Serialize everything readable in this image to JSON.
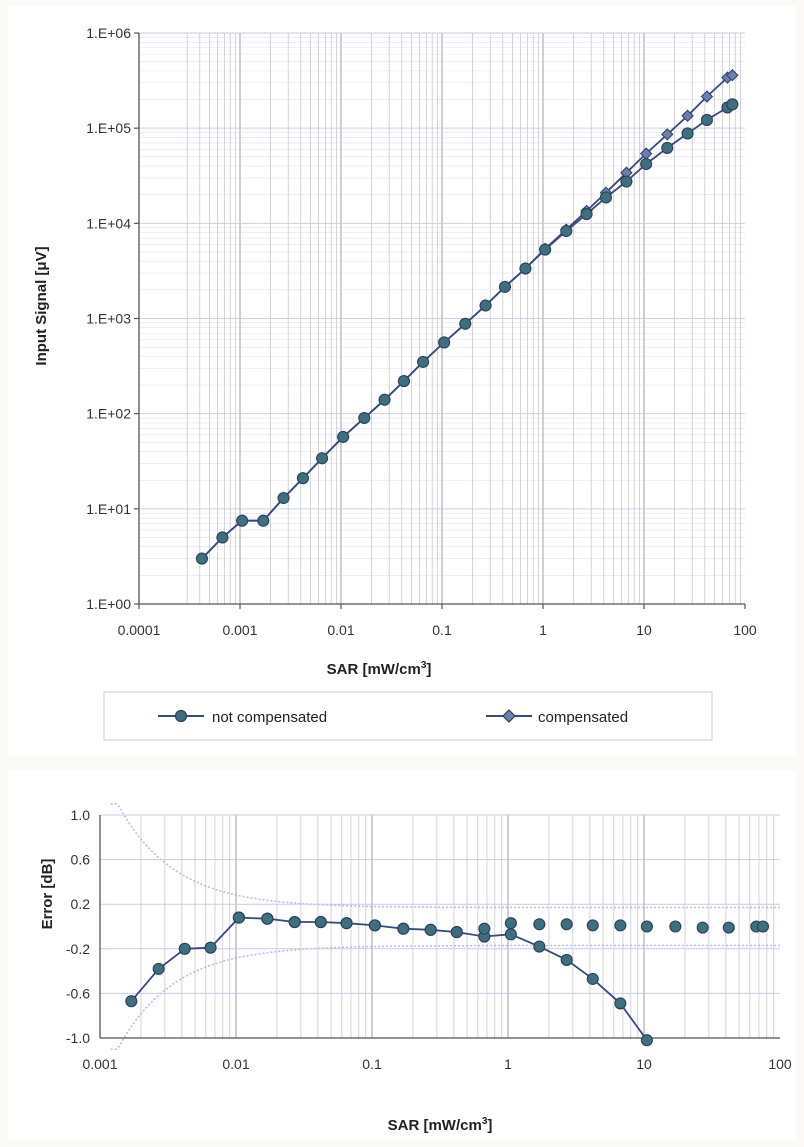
{
  "top_chart": {
    "y_label": "Input Signal [μV]",
    "x_label_main": "SAR [mW/cm",
    "x_label_sup": "3",
    "x_label_end": "]",
    "x_tick_labels": [
      "0.0001",
      "0.001",
      "0.01",
      "0.1",
      "1",
      "10",
      "100"
    ],
    "y_tick_labels": [
      "1.E+00",
      "1.E+01",
      "1.E+02",
      "1.E+03",
      "1.E+04",
      "1.E+05",
      "1.E+06"
    ],
    "legend": {
      "not_compensated": "not compensated",
      "compensated": "compensated"
    }
  },
  "bottom_chart": {
    "y_label": "Error [dB]",
    "x_label_main": "SAR [mW/cm",
    "x_label_sup": "3",
    "x_label_end": "]",
    "x_tick_labels": [
      "0.001",
      "0.01",
      "0.1",
      "1",
      "10",
      "100"
    ],
    "y_tick_labels": [
      "1.0",
      "0.6",
      "0.2",
      "-0.2",
      "-0.6",
      "-1.0"
    ]
  },
  "colors": {
    "line": "#3a4a78",
    "marker_fill": "#3f6f7c",
    "diamond_fill": "#6c7fb0",
    "grid": "#9a9aa2",
    "band": "#b6bfe0"
  },
  "chart_data": [
    {
      "type": "line",
      "xscale": "log",
      "yscale": "log",
      "xlim": [
        0.0001,
        100
      ],
      "ylim": [
        1,
        1000000
      ],
      "grid": true,
      "legend_position": "bottom",
      "series": [
        {
          "name": "not compensated",
          "marker": "circle",
          "x": [
            0.00042,
            0.00067,
            0.00105,
            0.0017,
            0.0027,
            0.0042,
            0.0065,
            0.0105,
            0.017,
            0.027,
            0.042,
            0.065,
            0.105,
            0.17,
            0.27,
            0.42,
            0.67,
            1.05,
            1.7,
            2.7,
            4.2,
            6.7,
            10.5,
            17,
            27,
            42,
            67,
            75
          ],
          "y": [
            3,
            5,
            7.5,
            7.5,
            13,
            21,
            34,
            57,
            90,
            140,
            220,
            350,
            560,
            880,
            1370,
            2150,
            3350,
            5300,
            8300,
            12500,
            18700,
            27500,
            42000,
            62000,
            88000,
            122000,
            165000,
            178000
          ]
        },
        {
          "name": "compensated",
          "marker": "diamond",
          "x": [
            0.00042,
            0.00067,
            0.00105,
            0.0017,
            0.0027,
            0.0042,
            0.0065,
            0.0105,
            0.017,
            0.027,
            0.042,
            0.065,
            0.105,
            0.17,
            0.27,
            0.42,
            0.67,
            1.05,
            1.7,
            2.7,
            4.2,
            6.7,
            10.5,
            17,
            27,
            42,
            67,
            75
          ],
          "y": [
            3,
            5,
            7.5,
            7.5,
            13,
            21,
            34,
            57,
            90,
            140,
            220,
            350,
            560,
            880,
            1370,
            2150,
            3350,
            5400,
            8600,
            13500,
            21000,
            34000,
            54000,
            86000,
            135000,
            215000,
            340000,
            360000
          ]
        }
      ]
    },
    {
      "type": "line",
      "xscale": "log",
      "xlim": [
        0.001,
        100
      ],
      "ylim": [
        -1.0,
        1.0
      ],
      "grid": true,
      "series": [
        {
          "marker": "circle",
          "line": "solid",
          "x": [
            0.0017,
            0.0027,
            0.0042,
            0.0065,
            0.0105,
            0.017,
            0.027,
            0.042,
            0.065,
            0.105,
            0.17,
            0.27,
            0.42,
            0.67,
            1.05,
            1.7,
            2.7,
            4.2,
            6.7,
            10.5
          ],
          "y": [
            -0.67,
            -0.38,
            -0.2,
            -0.19,
            0.08,
            0.07,
            0.04,
            0.04,
            0.03,
            0.01,
            -0.02,
            -0.03,
            -0.05,
            -0.09,
            -0.07,
            -0.18,
            -0.3,
            -0.47,
            -0.69,
            -1.02
          ]
        },
        {
          "marker": "circle",
          "line": "none",
          "x": [
            0.0105,
            0.017,
            0.027,
            0.042,
            0.065,
            0.105,
            0.17,
            0.27,
            0.42,
            0.67,
            1.05,
            1.7,
            2.7,
            4.2,
            6.7,
            10.5,
            17,
            27,
            42,
            67,
            75
          ],
          "y": [
            0.08,
            0.07,
            0.04,
            0.04,
            0.03,
            0.01,
            -0.02,
            -0.03,
            -0.05,
            -0.02,
            0.03,
            0.02,
            0.02,
            0.01,
            0.01,
            0.0,
            0.0,
            -0.01,
            -0.01,
            0.0,
            0.0
          ]
        }
      ]
    }
  ]
}
